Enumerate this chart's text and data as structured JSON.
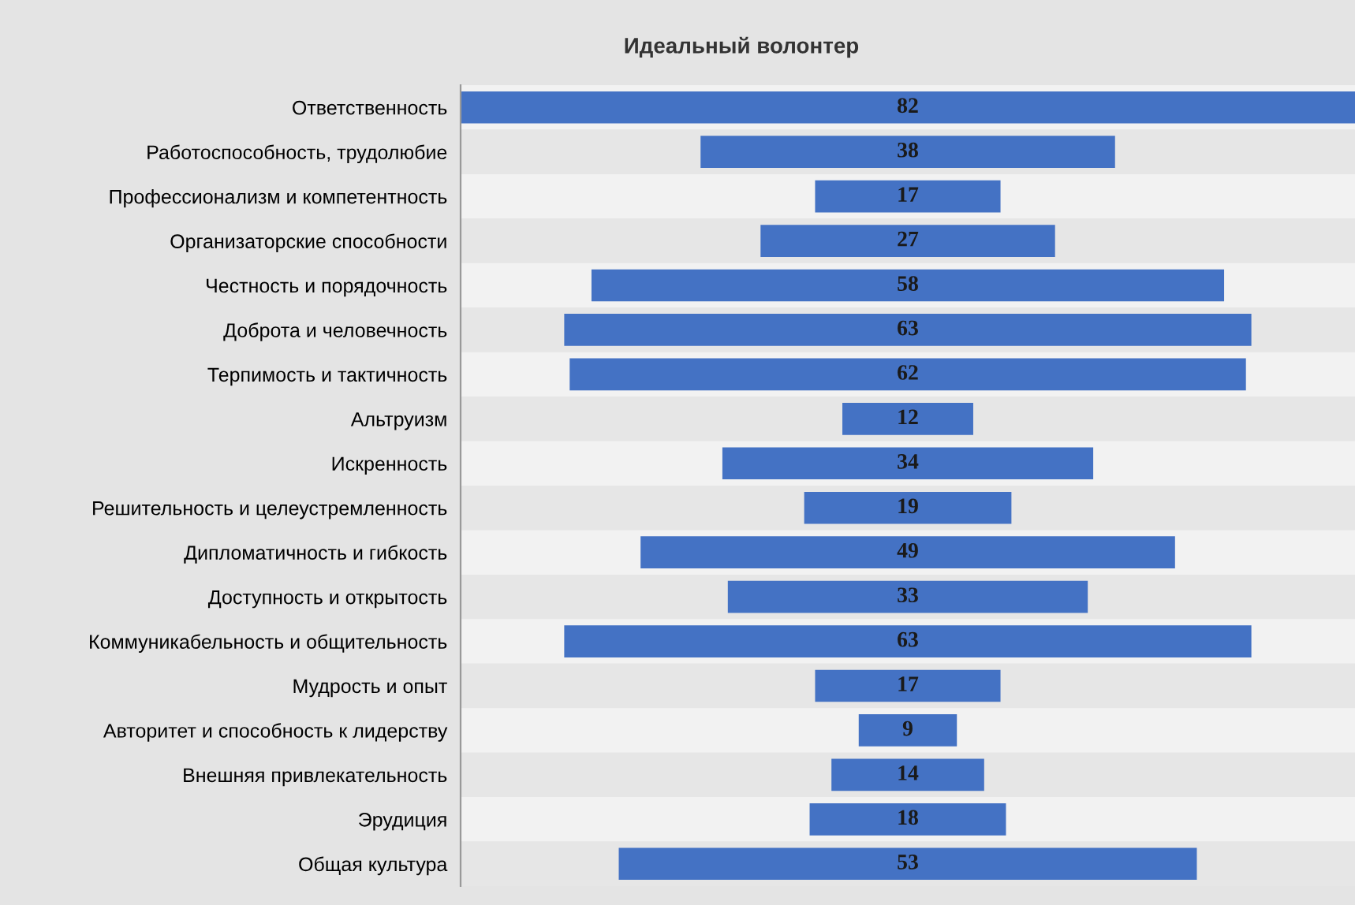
{
  "chart_data": {
    "type": "other",
    "title": "Идеальный волонтер",
    "categories": [
      "Ответственность",
      "Работоспособность, трудолюбие",
      "Профессионализм и компетентность",
      "Организаторские способности",
      "Честность и порядочность",
      "Доброта и человечность",
      "Терпимость и тактичность",
      "Альтруизм",
      "Искренность",
      "Решительность и целеустремленность",
      "Дипломатичность и гибкость",
      "Доступность и открытость",
      "Коммуникабельность и общительность",
      "Мудрость и опыт",
      "Авторитет и способность к лидерству",
      "Внешняя привлекательность",
      "Эрудиция",
      "Общая культура"
    ],
    "values": [
      82,
      38,
      17,
      27,
      58,
      63,
      62,
      12,
      34,
      19,
      49,
      33,
      63,
      17,
      9,
      14,
      18,
      53
    ],
    "color": "#4472c4",
    "data_labels": true
  }
}
